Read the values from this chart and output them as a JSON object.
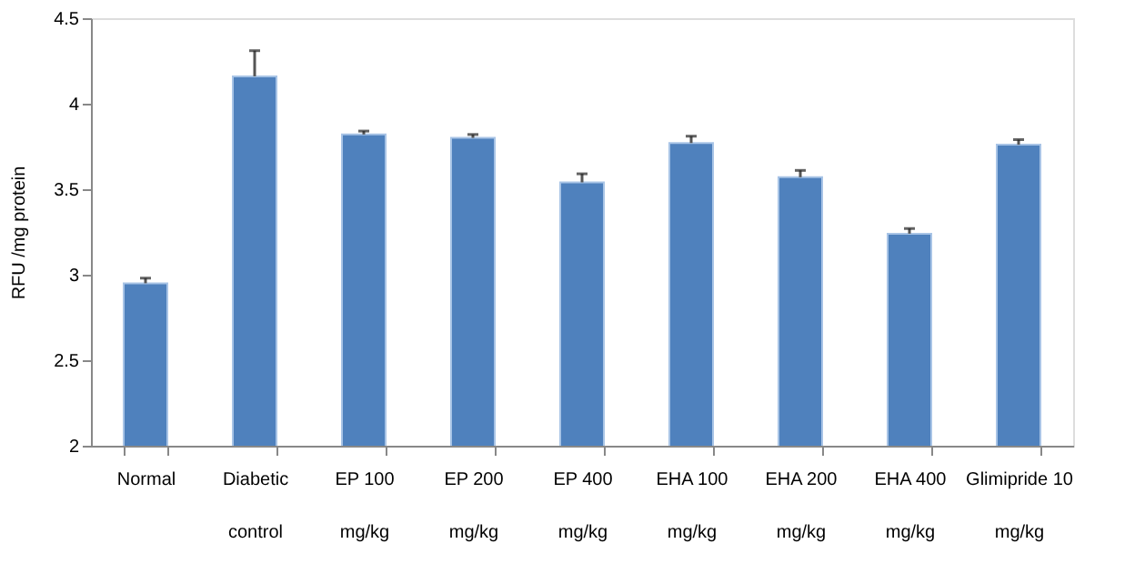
{
  "chart_data": {
    "type": "bar",
    "ylabel": "RFU /mg protein",
    "categories": [
      "Normal",
      "Diabetic\ncontrol",
      "EP 100\nmg/kg",
      "EP 200\nmg/kg",
      "EP 400\nmg/kg",
      "EHA 100\nmg/kg",
      "EHA 200\nmg/kg",
      "EHA 400\nmg/kg",
      "Glimipride 10\nmg/kg"
    ],
    "values": [
      2.95,
      4.16,
      3.82,
      3.8,
      3.54,
      3.77,
      3.57,
      3.24,
      3.76
    ],
    "errors": [
      [
        2.95,
        2.98
      ],
      [
        4.16,
        4.31
      ],
      [
        3.82,
        3.84
      ],
      [
        3.8,
        3.82
      ],
      [
        3.54,
        3.59
      ],
      [
        3.77,
        3.81
      ],
      [
        3.57,
        3.61
      ],
      [
        3.24,
        3.27
      ],
      [
        3.76,
        3.79
      ]
    ],
    "color": "#4f81bd",
    "ylim": [
      2,
      4.5
    ],
    "yticks": [
      2,
      2.5,
      3,
      3.5,
      4,
      4.5
    ],
    "grid": false
  }
}
